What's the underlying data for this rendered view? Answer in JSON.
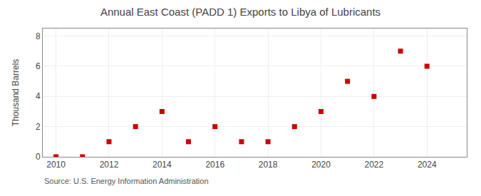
{
  "chart_data": {
    "type": "scatter",
    "title": "Annual East Coast (PADD 1) Exports to Libya of Lubricants",
    "ylabel": "Thousand Barrels",
    "annotations": [
      "Source: U.S. Energy Information Administration"
    ],
    "x": [
      2010,
      2011,
      2012,
      2013,
      2014,
      2015,
      2016,
      2017,
      2018,
      2019,
      2020,
      2021,
      2022,
      2023,
      2024
    ],
    "values": [
      0,
      0,
      1,
      2,
      3,
      1,
      2,
      1,
      1,
      2,
      3,
      5,
      4,
      7,
      6
    ],
    "color": "#cc0000",
    "marker": "square",
    "xlim": [
      2009.5,
      2025.5
    ],
    "xticks": [
      2010,
      2012,
      2014,
      2016,
      2018,
      2020,
      2022,
      2024
    ],
    "ylim": [
      0,
      8.5
    ],
    "yticks": [
      0,
      2,
      4,
      6,
      8
    ],
    "grid": true
  }
}
